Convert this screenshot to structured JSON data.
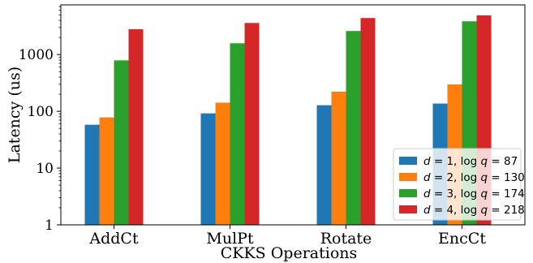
{
  "chart_data": {
    "type": "bar",
    "xlabel": "CKKS Operations",
    "ylabel": "Latency (us)",
    "yscale": "log",
    "ylim": [
      1,
      7500
    ],
    "yticks": [
      1,
      10,
      100,
      1000
    ],
    "ytick_labels": [
      "1",
      "10",
      "100",
      "1000"
    ],
    "categories": [
      "AddCt",
      "MulPt",
      "Rotate",
      "EncCt"
    ],
    "legend_position": "lower-right",
    "grid": false,
    "series": [
      {
        "name": "d = 1, log q = 87",
        "d": "1",
        "q": "87",
        "color": "#1f77b4",
        "values": [
          58,
          92,
          128,
          137
        ]
      },
      {
        "name": "d = 2, log q = 130",
        "d": "2",
        "q": "130",
        "color": "#ff7f0e",
        "values": [
          78,
          142,
          222,
          298
        ]
      },
      {
        "name": "d = 3, log q = 174",
        "d": "3",
        "q": "174",
        "color": "#2ca02c",
        "values": [
          790,
          1580,
          2600,
          3850
        ]
      },
      {
        "name": "d = 4, log q = 218",
        "d": "4",
        "q": "218",
        "color": "#d62728",
        "values": [
          2800,
          3600,
          4400,
          4900
        ]
      }
    ]
  }
}
